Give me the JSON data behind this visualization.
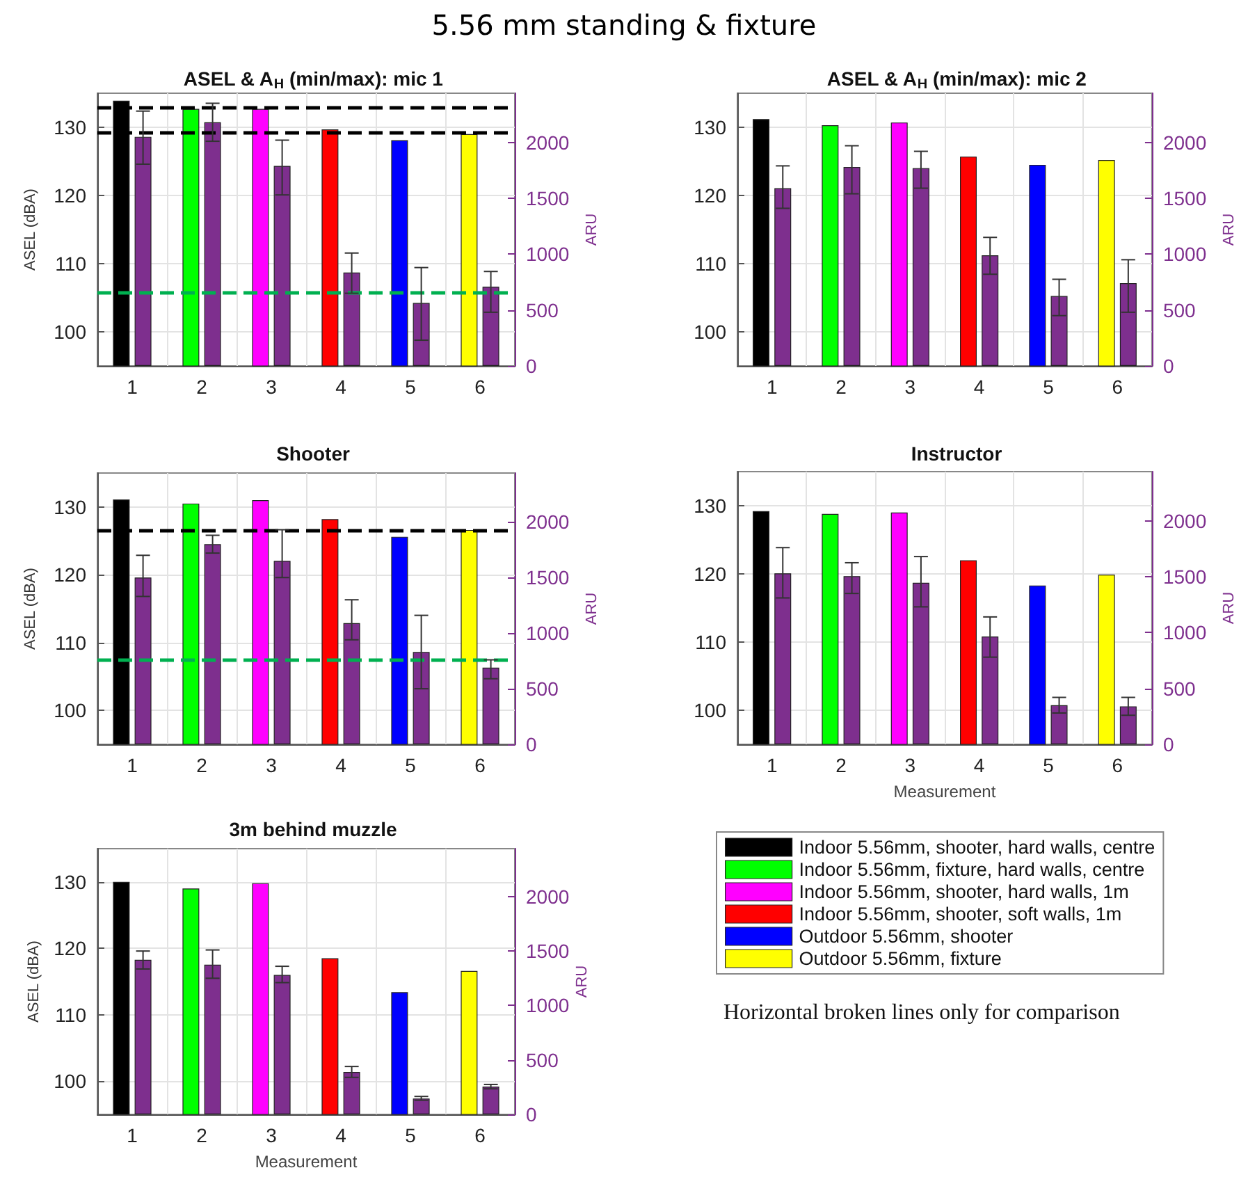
{
  "chart_data": [
    {
      "type": "bar",
      "title": "ASEL & A$_{H}$ (min/max): mic 1",
      "annotations": [
        "5.56 mm standing & fixture"
      ],
      "ylabel": "ASEL (dBA)",
      "y2label": "ARU",
      "categories": [
        "1",
        "2",
        "3",
        "4",
        "5",
        "6"
      ],
      "ylim": [
        95,
        135
      ],
      "yticks": [
        100,
        110,
        120,
        130
      ],
      "y2lim": [
        0,
        2440
      ],
      "y2ticks": [
        0,
        500,
        1000,
        1500,
        2000
      ],
      "grid": true,
      "legend": false,
      "ref_lines": [
        {
          "axis": "y",
          "value": 132.9,
          "color": "#000000",
          "line_style": "dashed"
        },
        {
          "axis": "y",
          "value": 129.2,
          "color": "#000000",
          "line_style": "dashed"
        },
        {
          "axis": "y",
          "value": 105.7,
          "color": "#00b050",
          "line_style": "dashed"
        }
      ],
      "series": [
        {
          "colors": [
            "#000000",
            "#00ff00",
            "#ff00ff",
            "#ff0000",
            "#0000ff",
            "#ffff00"
          ],
          "values": [
            133.9,
            132.7,
            132.7,
            129.7,
            128.1,
            129.0
          ]
        },
        {
          "color": "#7e2f8e",
          "axis": "y2",
          "values": [
            2050,
            2180,
            1790,
            836,
            563,
            708
          ],
          "errors": [
            [
              1805,
              2280
            ],
            [
              2010,
              2350
            ],
            [
              1530,
              2020
            ],
            [
              650,
              1010
            ],
            [
              230,
              880
            ],
            [
              480,
              845
            ]
          ]
        }
      ]
    },
    {
      "type": "bar",
      "title": "ASEL & A$_{H}$ (min/max): mic 2",
      "y2label": "ARU",
      "categories": [
        "1",
        "2",
        "3",
        "4",
        "5",
        "6"
      ],
      "ylim": [
        95,
        135
      ],
      "yticks": [
        100,
        110,
        120,
        130
      ],
      "y2lim": [
        0,
        2440
      ],
      "y2ticks": [
        0,
        500,
        1000,
        1500,
        2000
      ],
      "grid": true,
      "legend": false,
      "series": [
        {
          "colors": [
            "#000000",
            "#00ff00",
            "#ff00ff",
            "#ff0000",
            "#0000ff",
            "#ffff00"
          ],
          "values": [
            131.2,
            130.3,
            130.7,
            125.7,
            124.5,
            125.2
          ]
        },
        {
          "color": "#7e2f8e",
          "axis": "y2",
          "values": [
            1590,
            1780,
            1770,
            990,
            625,
            740
          ],
          "errors": [
            [
              1410,
              1790
            ],
            [
              1540,
              1970
            ],
            [
              1590,
              1920
            ],
            [
              820,
              1150
            ],
            [
              450,
              775
            ],
            [
              480,
              950
            ]
          ]
        }
      ]
    },
    {
      "type": "bar",
      "title": "Shooter",
      "ylabel": "ASEL (dBA)",
      "y2label": "ARU",
      "categories": [
        "1",
        "2",
        "3",
        "4",
        "5",
        "6"
      ],
      "ylim": [
        95,
        135
      ],
      "yticks": [
        100,
        110,
        120,
        130
      ],
      "y2lim": [
        0,
        2440
      ],
      "y2ticks": [
        0,
        500,
        1000,
        1500,
        2000
      ],
      "grid": true,
      "legend": false,
      "ref_lines": [
        {
          "axis": "y",
          "value": 126.5,
          "color": "#000000",
          "line_style": "dashed"
        },
        {
          "axis": "y",
          "value": 107.5,
          "color": "#00b050",
          "line_style": "dashed"
        }
      ],
      "series": [
        {
          "colors": [
            "#000000",
            "#00ff00",
            "#ff00ff",
            "#ff0000",
            "#0000ff",
            "#ffff00"
          ],
          "values": [
            131.1,
            130.5,
            131.0,
            128.2,
            125.6,
            126.6
          ]
        },
        {
          "color": "#7e2f8e",
          "axis": "y2",
          "values": [
            1500,
            1800,
            1650,
            1090,
            830,
            690
          ],
          "errors": [
            [
              1330,
              1700
            ],
            [
              1720,
              1880
            ],
            [
              1500,
              1930
            ],
            [
              940,
              1300
            ],
            [
              500,
              1160
            ],
            [
              590,
              760
            ]
          ]
        }
      ]
    },
    {
      "type": "bar",
      "title": "Instructor",
      "xlabel": "Measurement",
      "y2label": "ARU",
      "categories": [
        "1",
        "2",
        "3",
        "4",
        "5",
        "6"
      ],
      "ylim": [
        95,
        135
      ],
      "yticks": [
        100,
        110,
        120,
        130
      ],
      "y2lim": [
        0,
        2440
      ],
      "y2ticks": [
        0,
        500,
        1000,
        1500,
        2000
      ],
      "grid": true,
      "legend": false,
      "series": [
        {
          "colors": [
            "#000000",
            "#00ff00",
            "#ff00ff",
            "#ff0000",
            "#0000ff",
            "#ffff00"
          ],
          "values": [
            129.2,
            128.8,
            129.0,
            122.0,
            118.3,
            119.9
          ]
        },
        {
          "color": "#7e2f8e",
          "axis": "y2",
          "values": [
            1530,
            1505,
            1445,
            965,
            350,
            340
          ],
          "errors": [
            [
              1310,
              1760
            ],
            [
              1350,
              1625
            ],
            [
              1230,
              1680
            ],
            [
              780,
              1140
            ],
            [
              280,
              420
            ],
            [
              260,
              420
            ]
          ]
        }
      ]
    },
    {
      "type": "bar",
      "title": "3m behind muzzle",
      "xlabel": "Measurement",
      "ylabel": "ASEL (dBA)",
      "y2label": "ARU",
      "categories": [
        "1",
        "2",
        "3",
        "4",
        "5",
        "6"
      ],
      "ylim": [
        95,
        135
      ],
      "yticks": [
        100,
        110,
        120,
        130
      ],
      "y2lim": [
        0,
        2440
      ],
      "y2ticks": [
        0,
        500,
        1000,
        1500,
        2000
      ],
      "grid": true,
      "legend": "right",
      "stacked": true,
      "annotations": [
        "Horizontal broken lines only for comparison"
      ],
      "series": [
        {
          "name": "Indoor 5.56mm, shooter, hard walls, centre",
          "color": "#000000",
          "values": [
            130.0,
            null,
            null,
            null,
            null,
            null
          ]
        },
        {
          "name": "Indoor 5.56mm, fixture, hard walls, centre",
          "color": "#00ff00",
          "values": [
            null,
            129.0,
            null,
            null,
            null,
            null
          ]
        },
        {
          "name": "Indoor 5.56mm, shooter, hard walls, 1m",
          "color": "#ff00ff",
          "values": [
            null,
            null,
            129.8,
            null,
            null,
            null
          ]
        },
        {
          "name": "Indoor 5.56mm, shooter, soft walls, 1m",
          "color": "#ff0000",
          "values": [
            null,
            null,
            null,
            118.5,
            null,
            null
          ]
        },
        {
          "name": "Outdoor 5.56mm, shooter",
          "color": "#0000ff",
          "values": [
            null,
            null,
            null,
            null,
            113.4,
            null
          ]
        },
        {
          "name": "Outdoor 5.56mm, fixture",
          "color": "#ffff00",
          "values": [
            null,
            null,
            null,
            null,
            null,
            116.6
          ]
        },
        {
          "color": "#7e2f8e",
          "axis": "y2",
          "values": [
            1420,
            1375,
            1280,
            390,
            146,
            255
          ],
          "errors": [
            [
              1335,
              1500
            ],
            [
              1250,
              1510
            ],
            [
              1210,
              1360
            ],
            [
              340,
              440
            ],
            [
              130,
              165
            ],
            [
              235,
              275
            ]
          ]
        }
      ]
    }
  ]
}
